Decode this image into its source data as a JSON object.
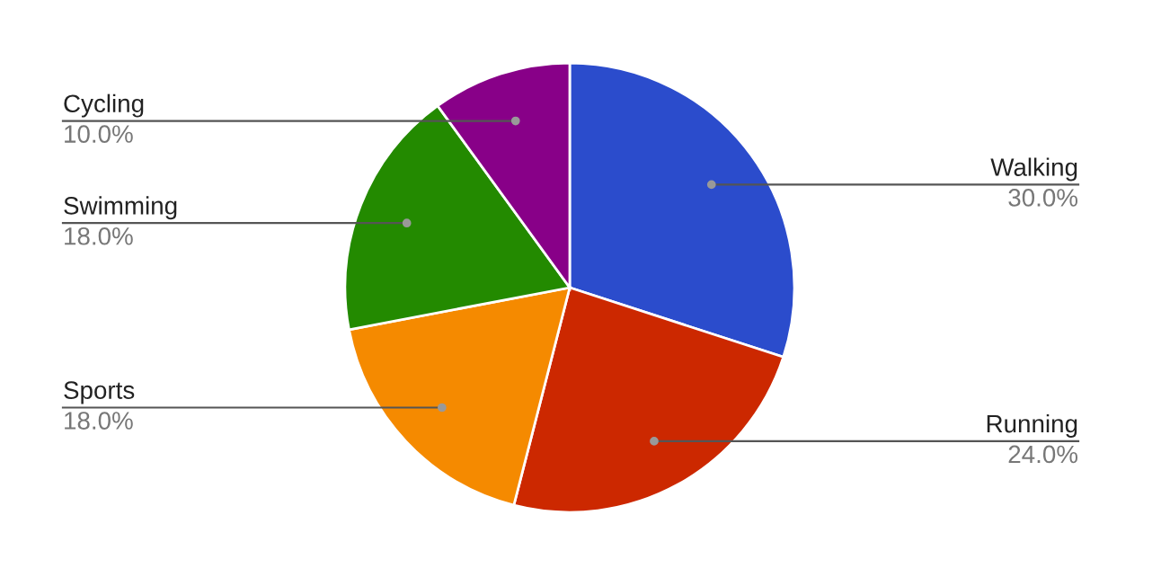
{
  "chart_data": {
    "type": "pie",
    "categories": [
      "Walking",
      "Running",
      "Sports",
      "Swimming",
      "Cycling"
    ],
    "values": [
      30,
      24,
      18,
      18,
      10
    ],
    "colors": [
      "#2b4ccc",
      "#cc2800",
      "#f58a00",
      "#238a00",
      "#880088"
    ],
    "value_labels": [
      "30.0%",
      "24.0%",
      "18.0%",
      "18.0%",
      "10.0%"
    ]
  }
}
